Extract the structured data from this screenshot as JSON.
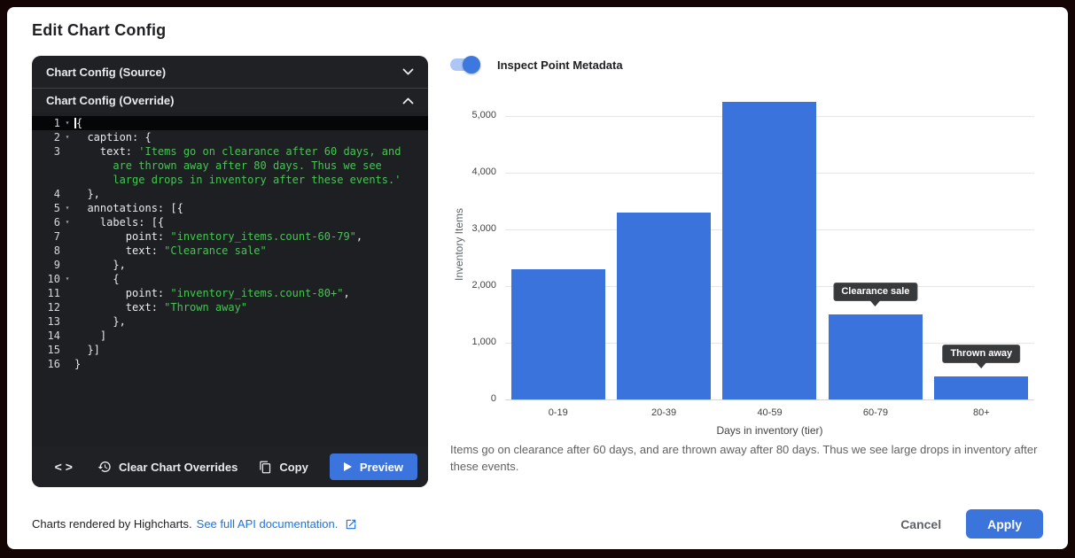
{
  "dialog": {
    "title": "Edit Chart Config"
  },
  "panels": {
    "source": {
      "label": "Chart Config (Source)",
      "collapsed": true
    },
    "override": {
      "label": "Chart Config (Override)",
      "collapsed": false
    }
  },
  "editor": {
    "toolbar": {
      "code_glyph": "<>",
      "clear_label": "Clear Chart Overrides",
      "copy_label": "Copy",
      "preview_label": "Preview"
    },
    "lines": [
      {
        "n": "1",
        "fold": true,
        "active": true,
        "parts": [
          [
            "t",
            "{"
          ]
        ]
      },
      {
        "n": "2",
        "fold": true,
        "parts": [
          [
            "t",
            "  caption: {"
          ]
        ]
      },
      {
        "n": "3",
        "parts": [
          [
            "t",
            "    text: "
          ],
          [
            "s",
            "'Items go on clearance after 60 days, and"
          ]
        ]
      },
      {
        "n": "",
        "parts": [
          [
            "s",
            "      are thrown away after 80 days. Thus we see"
          ]
        ]
      },
      {
        "n": "",
        "parts": [
          [
            "s",
            "      large drops in inventory after these events.'"
          ]
        ]
      },
      {
        "n": "4",
        "parts": [
          [
            "t",
            "  },"
          ]
        ]
      },
      {
        "n": "5",
        "fold": true,
        "parts": [
          [
            "t",
            "  annotations: [{"
          ]
        ]
      },
      {
        "n": "6",
        "fold": true,
        "parts": [
          [
            "t",
            "    labels: [{"
          ]
        ]
      },
      {
        "n": "7",
        "parts": [
          [
            "t",
            "        point: "
          ],
          [
            "s",
            "\"inventory_items.count-60-79\""
          ],
          [
            "t",
            ","
          ]
        ]
      },
      {
        "n": "8",
        "parts": [
          [
            "t",
            "        text: "
          ],
          [
            "s",
            "\"Clearance sale\""
          ]
        ]
      },
      {
        "n": "9",
        "parts": [
          [
            "t",
            "      },"
          ]
        ]
      },
      {
        "n": "10",
        "fold": true,
        "parts": [
          [
            "t",
            "      {"
          ]
        ]
      },
      {
        "n": "11",
        "parts": [
          [
            "t",
            "        point: "
          ],
          [
            "s",
            "\"inventory_items.count-80+\""
          ],
          [
            "t",
            ","
          ]
        ]
      },
      {
        "n": "12",
        "parts": [
          [
            "t",
            "        text: "
          ],
          [
            "s",
            "\"Thrown away\""
          ]
        ]
      },
      {
        "n": "13",
        "parts": [
          [
            "t",
            "      },"
          ]
        ]
      },
      {
        "n": "14",
        "parts": [
          [
            "t",
            "    ]"
          ]
        ]
      },
      {
        "n": "15",
        "parts": [
          [
            "t",
            "  }]"
          ]
        ]
      },
      {
        "n": "16",
        "parts": [
          [
            "t",
            "}"
          ]
        ]
      }
    ]
  },
  "toggle": {
    "label": "Inspect Point Metadata",
    "state": "on"
  },
  "chart_data": {
    "type": "bar",
    "categories": [
      "0-19",
      "20-39",
      "40-59",
      "60-79",
      "80+"
    ],
    "values": [
      2300,
      3300,
      5250,
      1500,
      400
    ],
    "xlabel": "Days in inventory (tier)",
    "ylabel": "Inventory Items",
    "ylim": [
      0,
      5500
    ],
    "yticks": [
      0,
      1000,
      2000,
      3000,
      4000,
      5000
    ],
    "grid": true,
    "legend": false,
    "bar_color": "#3B73DD",
    "annotations": [
      {
        "bar_index": 3,
        "text": "Clearance sale"
      },
      {
        "bar_index": 4,
        "text": "Thrown away"
      }
    ],
    "caption": "Items go on clearance after 60 days, and are thrown away after 80 days. Thus we see large drops in inventory after these events."
  },
  "footer": {
    "rendered_by": "Charts rendered by Highcharts.",
    "link_label": "See full API documentation.",
    "cancel_label": "Cancel",
    "apply_label": "Apply"
  },
  "colors": {
    "accent": "#3B74DC",
    "bar": "#3B73DD",
    "code_string": "#48C454",
    "editor_bg": "#1D1F22",
    "panel_bg": "#202124",
    "link": "#1A73E8"
  }
}
